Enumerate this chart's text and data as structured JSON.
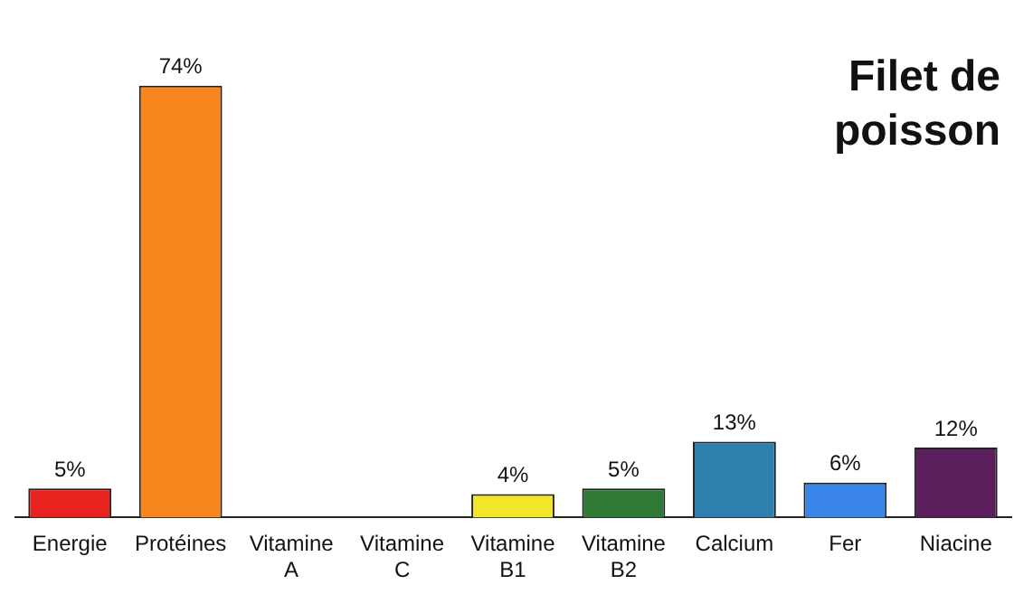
{
  "chart_data": {
    "type": "bar",
    "title": "Filet de poisson",
    "categories": [
      "Energie",
      "Protéines",
      "Vitamine A",
      "Vitamine C",
      "Vitamine B1",
      "Vitamine B2",
      "Calcium",
      "Fer",
      "Niacine"
    ],
    "values": [
      5,
      74,
      0,
      0,
      4,
      5,
      13,
      6,
      12
    ],
    "colors": [
      "#e8231f",
      "#f7861e",
      "#f0e030",
      "#f0e030",
      "#f2e52a",
      "#2f7a35",
      "#2e7fae",
      "#3a86e8",
      "#5a1f5c"
    ],
    "value_labels": [
      "5%",
      "74%",
      null,
      null,
      "4%",
      "5%",
      "13%",
      "6%",
      "12%"
    ],
    "grid": false,
    "legend": false
  }
}
